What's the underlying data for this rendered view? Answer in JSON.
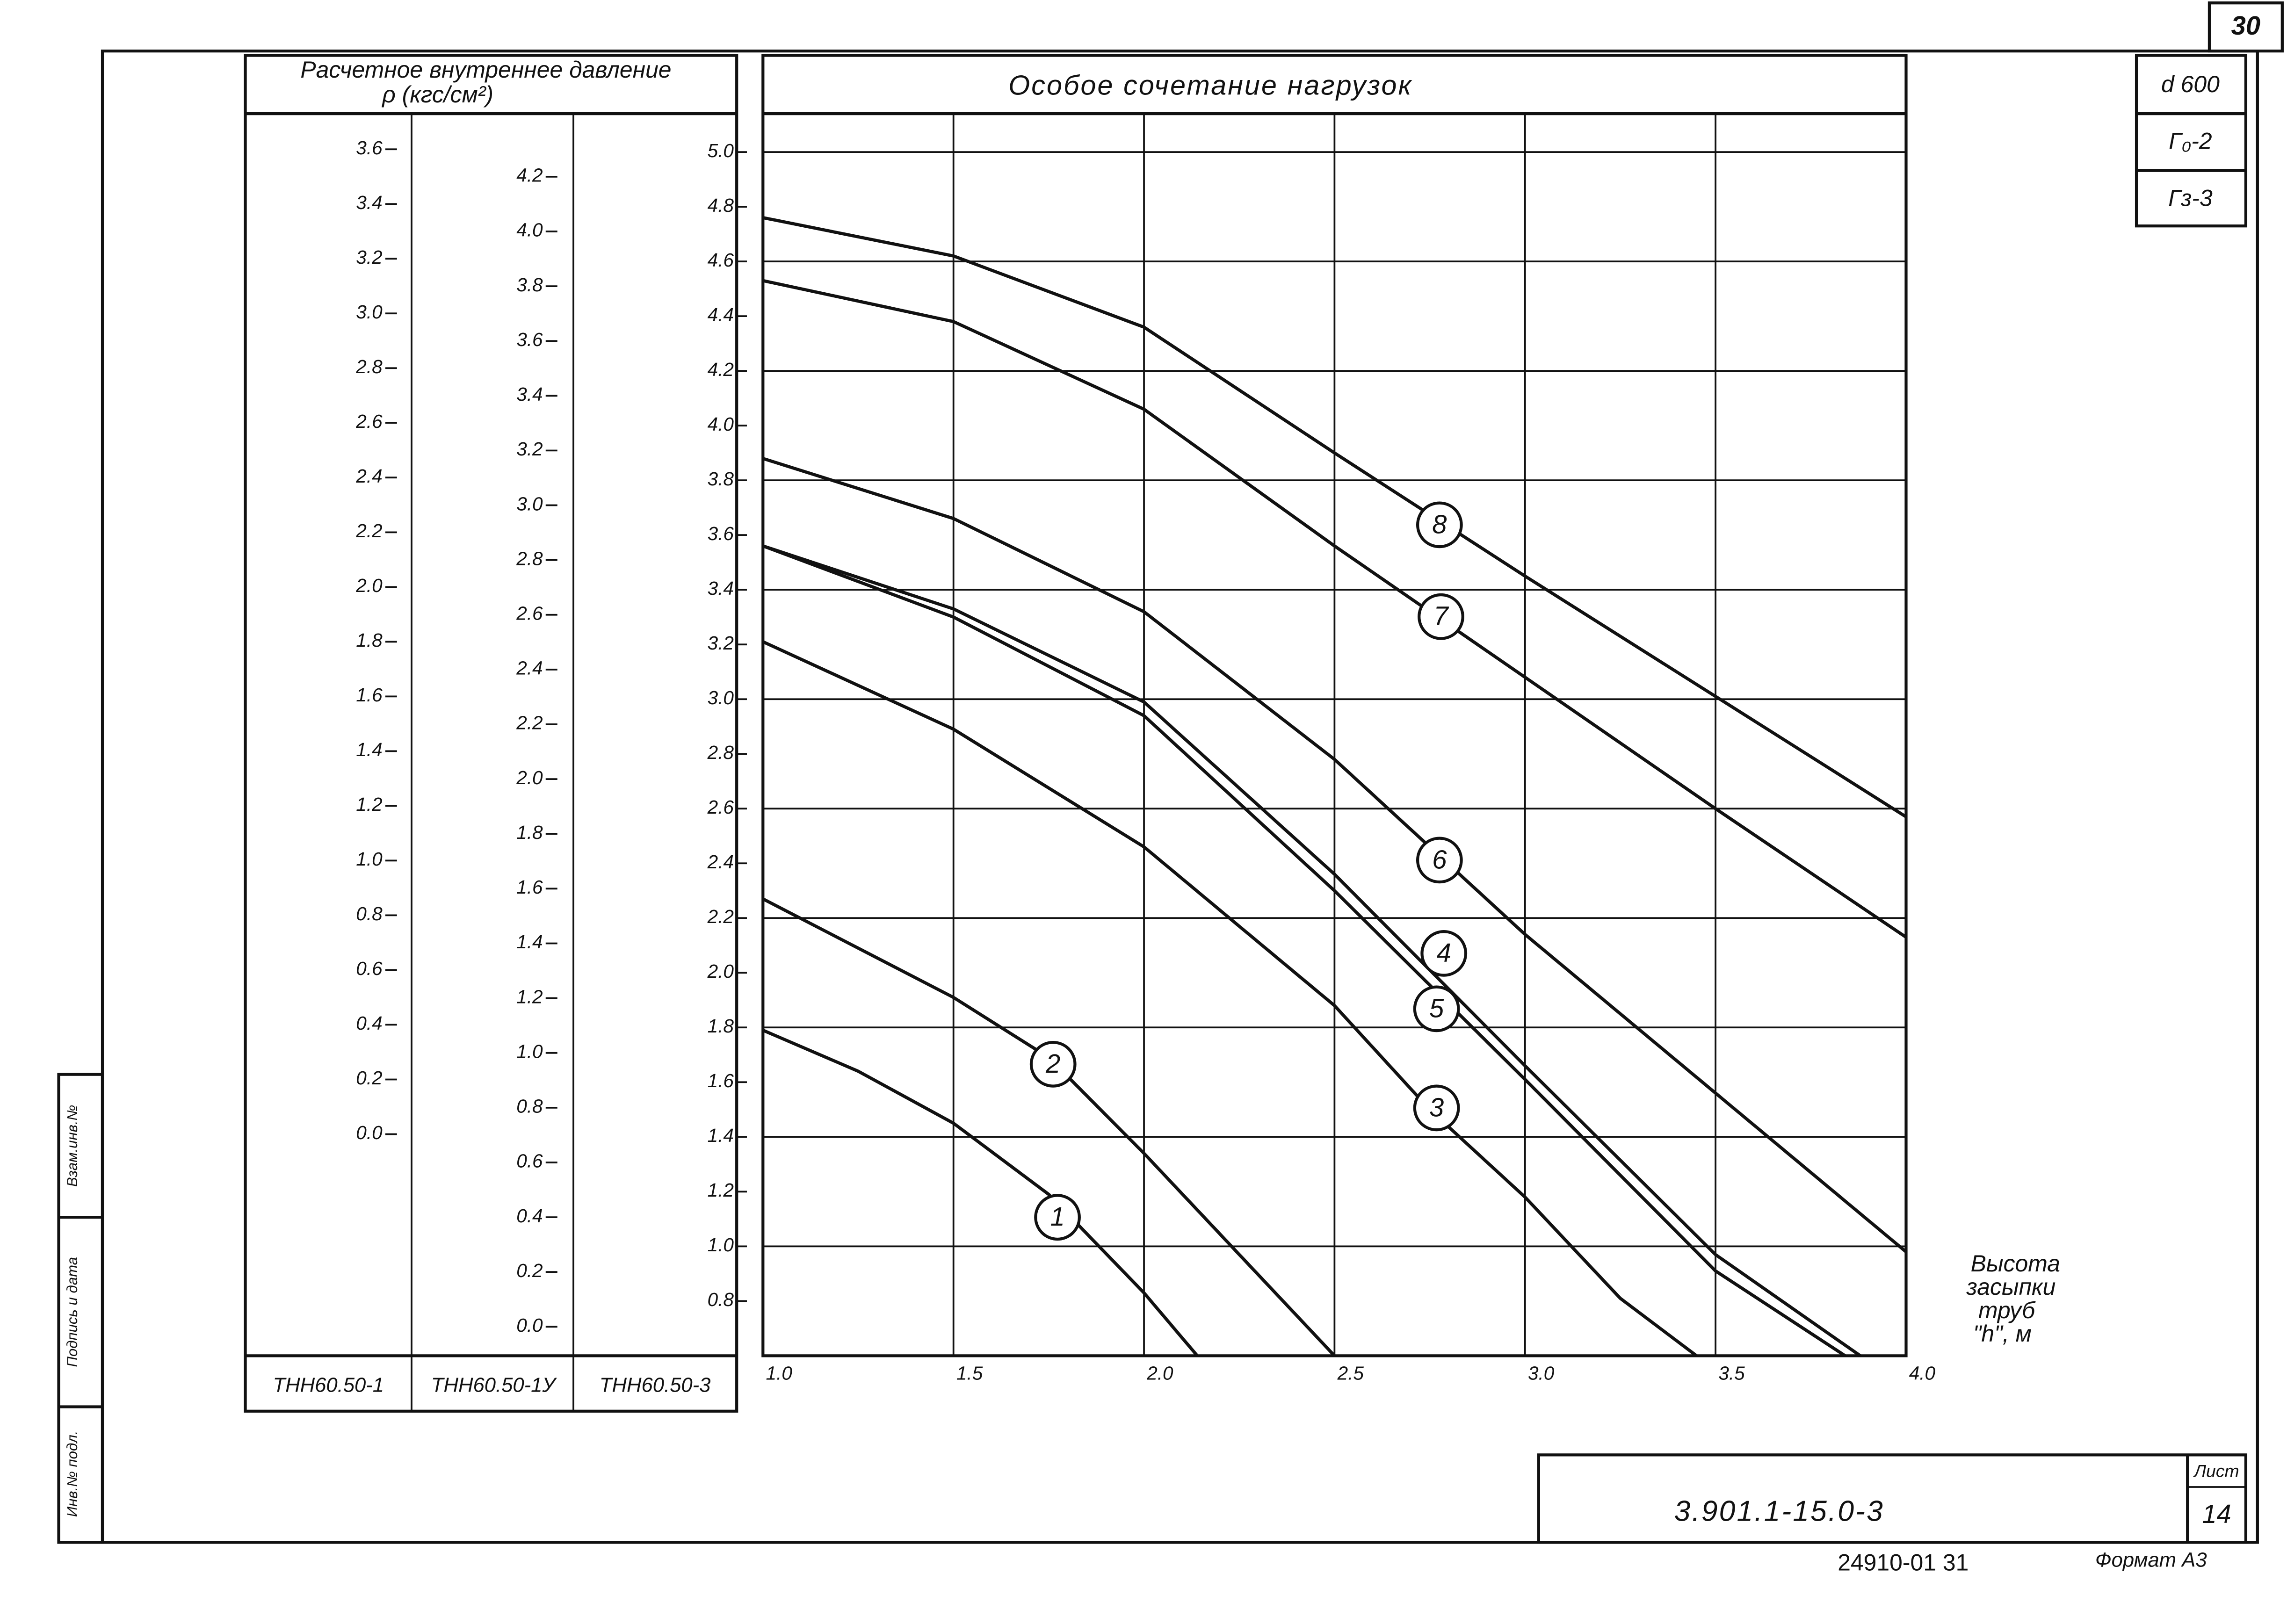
{
  "chart_data": {
    "type": "line",
    "title": "Особое сочетание нагрузок",
    "xlabel": [
      "Высота",
      "засыпки",
      "труб",
      "\"h\", м"
    ],
    "xlim": [
      1,
      4
    ],
    "xticks": [
      {
        "value": 1,
        "label": "1.0"
      },
      1.5,
      {
        "value": 2,
        "label": "2.0"
      },
      2.5,
      {
        "value": 3,
        "label": "3.0"
      },
      3.5,
      {
        "value": 4,
        "label": "4.0"
      }
    ],
    "ylim": [
      0.6,
      5.14
    ],
    "yticks": [
      0.8,
      {
        "value": 1,
        "label": "1.0"
      },
      1.2,
      1.4,
      1.6,
      1.8,
      {
        "value": 2,
        "label": "2.0"
      },
      2.2,
      2.4,
      2.6,
      2.8,
      {
        "value": 3,
        "label": "3.0"
      },
      3.2,
      3.4,
      3.6,
      3.8,
      {
        "value": 4,
        "label": "4.0"
      },
      4.2,
      4.4,
      4.6,
      4.8,
      {
        "value": 5,
        "label": "5.0"
      }
    ],
    "grid": true,
    "series": [
      {
        "name": "1",
        "color": "#111111",
        "x": [
          1,
          1.25,
          1.5,
          1.75,
          2,
          2.14
        ],
        "values": [
          1.79,
          1.64,
          1.45,
          1.19,
          0.83,
          0.6
        ]
      },
      {
        "name": "2",
        "color": "#111111",
        "x": [
          1,
          1.5,
          1.75,
          2,
          2.25,
          2.5
        ],
        "values": [
          2.27,
          1.91,
          1.69,
          1.34,
          0.97,
          0.6
        ]
      },
      {
        "name": "3",
        "color": "#111111",
        "x": [
          1,
          1.5,
          2,
          2.5,
          2.75,
          3,
          3.25,
          3.45
        ],
        "values": [
          3.21,
          2.89,
          2.46,
          1.88,
          1.5,
          1.18,
          0.81,
          0.6
        ]
      },
      {
        "name": "4",
        "color": "#111111",
        "x": [
          1,
          1.5,
          2,
          2.5,
          3,
          3.5,
          3.88
        ],
        "values": [
          3.56,
          3.33,
          2.99,
          2.36,
          1.66,
          0.97,
          0.6
        ]
      },
      {
        "name": "5",
        "color": "#111111",
        "x": [
          1,
          1.5,
          2,
          2.5,
          3,
          3.5,
          3.84
        ],
        "values": [
          3.56,
          3.3,
          2.94,
          2.3,
          1.61,
          0.91,
          0.6
        ]
      },
      {
        "name": "6",
        "color": "#111111",
        "x": [
          1,
          1.5,
          2,
          2.5,
          3,
          3.5,
          4
        ],
        "values": [
          3.88,
          3.66,
          3.32,
          2.78,
          2.14,
          1.56,
          0.98
        ]
      },
      {
        "name": "7",
        "color": "#111111",
        "x": [
          1,
          1.5,
          2,
          2.5,
          3,
          3.5,
          4
        ],
        "values": [
          4.53,
          4.38,
          4.06,
          3.56,
          3.08,
          2.6,
          2.13
        ]
      },
      {
        "name": "8",
        "color": "#111111",
        "x": [
          1,
          1.5,
          2,
          2.5,
          3,
          3.5,
          4
        ],
        "values": [
          4.76,
          4.62,
          4.36,
          3.9,
          3.45,
          3.01,
          2.57
        ]
      }
    ]
  },
  "pressure_axes": {
    "header": [
      "Расчетное внутреннее давление",
      "ρ (кгс/см²)"
    ],
    "columns": [
      {
        "name": "ТНН60.50-1",
        "ylim": [
          -0.81,
          3.73
        ],
        "ticks": [
          {
            "value": 0,
            "label": "0.0"
          },
          0.2,
          0.4,
          0.6,
          0.8,
          {
            "value": 1,
            "label": "1.0"
          },
          1.2,
          1.4,
          1.6,
          1.8,
          {
            "value": 2,
            "label": "2.0"
          },
          2.2,
          2.4,
          2.6,
          2.8,
          {
            "value": 3,
            "label": "3.0"
          },
          3.2,
          3.4,
          3.6
        ]
      },
      {
        "name": "ТНН60.50-1У",
        "ylim": [
          -0.106,
          4.43
        ],
        "ticks": [
          {
            "value": 0,
            "label": "0.0"
          },
          0.2,
          0.4,
          0.6,
          0.8,
          {
            "value": 1,
            "label": "1.0"
          },
          1.2,
          1.4,
          1.6,
          1.8,
          {
            "value": 2,
            "label": "2.0"
          },
          2.2,
          2.4,
          2.6,
          2.8,
          {
            "value": 3,
            "label": "3.0"
          },
          3.2,
          3.4,
          3.6,
          3.8,
          {
            "value": 4,
            "label": "4.0"
          },
          4.2
        ]
      },
      {
        "name": "ТНН60.50-3"
      }
    ]
  },
  "sheet": {
    "corner_number": "30",
    "parameters": [
      "d 600",
      "Г₀-2",
      "Гз-3"
    ],
    "side_stamp": [
      "Инв.№ подл.",
      "Подпись и дата",
      "Взам.инв.№"
    ],
    "designation": "3.901.1-15.0-3",
    "sheet_label": "Лист",
    "sheet_number": "14",
    "footer_code": "24910-01  31",
    "format": "Формат А3"
  }
}
